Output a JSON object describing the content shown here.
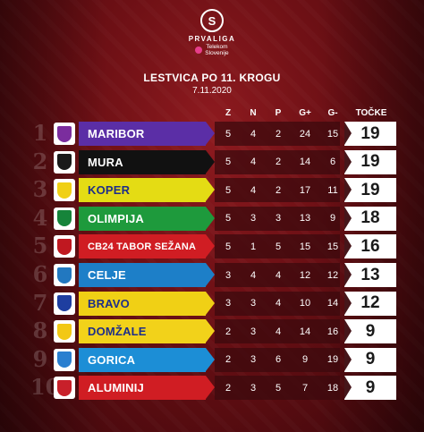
{
  "header": {
    "logo_letter": "S",
    "brand": "PRVALIGA",
    "sponsor_line1": "Telekom",
    "sponsor_line2": "Slovenije"
  },
  "title": "LESTVICA PO 11. KROGU",
  "date": "7.11.2020",
  "columns": {
    "z": "Z",
    "n": "N",
    "p": "P",
    "gf": "G+",
    "ga": "G-",
    "pts": "TOČKE"
  },
  "colors": {
    "accent": "#7a1418",
    "stats_bg": "#3c0a0e",
    "points_bg": "#ffffff"
  },
  "rows": [
    {
      "rank": "1",
      "team": "MARIBOR",
      "color": "#5b2ea6",
      "text": "#ffffff",
      "crest": "#7b2d9e",
      "z": "5",
      "n": "4",
      "p": "2",
      "gf": "24",
      "ga": "15",
      "pts": "19"
    },
    {
      "rank": "2",
      "team": "MURA",
      "color": "#111111",
      "text": "#ffffff",
      "crest": "#1a1a1a",
      "z": "5",
      "n": "4",
      "p": "2",
      "gf": "14",
      "ga": "6",
      "pts": "19"
    },
    {
      "rank": "3",
      "team": "KOPER",
      "color": "#e4dc14",
      "text": "#1e2e8a",
      "crest": "#f0d015",
      "z": "5",
      "n": "4",
      "p": "2",
      "gf": "17",
      "ga": "11",
      "pts": "19"
    },
    {
      "rank": "4",
      "team": "OLIMPIJA",
      "color": "#1e9a3c",
      "text": "#ffffff",
      "crest": "#16843a",
      "z": "5",
      "n": "3",
      "p": "3",
      "gf": "13",
      "ga": "9",
      "pts": "18"
    },
    {
      "rank": "5",
      "team": "CB24 TABOR SEŽANA",
      "color": "#d01d23",
      "text": "#ffffff",
      "crest": "#c01820",
      "z": "5",
      "n": "1",
      "p": "5",
      "gf": "15",
      "ga": "15",
      "pts": "16"
    },
    {
      "rank": "6",
      "team": "CELJE",
      "color": "#1d7fc8",
      "text": "#ffffff",
      "crest": "#2278c0",
      "z": "3",
      "n": "4",
      "p": "4",
      "gf": "12",
      "ga": "12",
      "pts": "13"
    },
    {
      "rank": "7",
      "team": "BRAVO",
      "color": "#f0d015",
      "text": "#1e2e8a",
      "crest": "#1e3ea0",
      "z": "3",
      "n": "3",
      "p": "4",
      "gf": "10",
      "ga": "14",
      "pts": "12"
    },
    {
      "rank": "8",
      "team": "DOMŽALE",
      "color": "#f2d21a",
      "text": "#1e2e8a",
      "crest": "#f2c815",
      "z": "2",
      "n": "3",
      "p": "4",
      "gf": "14",
      "ga": "16",
      "pts": "9"
    },
    {
      "rank": "9",
      "team": "GORICA",
      "color": "#1c8ed6",
      "text": "#ffffff",
      "crest": "#2a7fd0",
      "z": "2",
      "n": "3",
      "p": "6",
      "gf": "9",
      "ga": "19",
      "pts": "9"
    },
    {
      "rank": "10",
      "team": "ALUMINIJ",
      "color": "#d01d23",
      "text": "#ffffff",
      "crest": "#c8202a",
      "z": "2",
      "n": "3",
      "p": "5",
      "gf": "7",
      "ga": "18",
      "pts": "9"
    }
  ]
}
